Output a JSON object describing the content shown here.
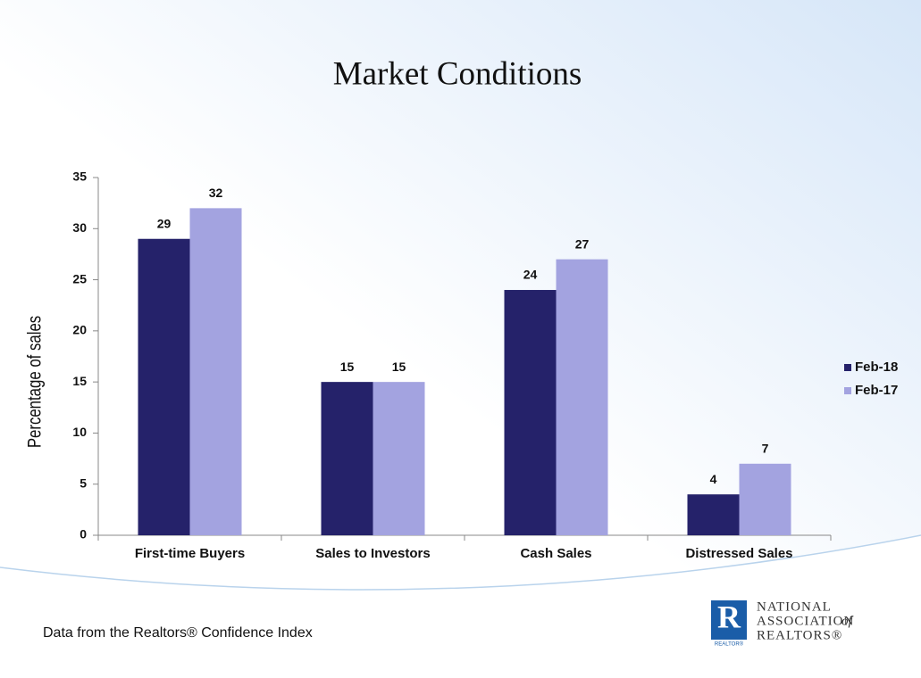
{
  "chart_data": {
    "type": "bar",
    "title": "Market Conditions",
    "y_label": "Percentage of  sales",
    "categories": [
      "First-time Buyers",
      "Sales to Investors",
      "Cash Sales",
      "Distressed Sales"
    ],
    "series": [
      {
        "name": "Feb-18",
        "color": "#25226a",
        "values": [
          29,
          15,
          24,
          4
        ]
      },
      {
        "name": "Feb-17",
        "color": "#a3a3e0",
        "values": [
          32,
          15,
          27,
          7
        ]
      }
    ],
    "ylim": [
      0,
      35
    ],
    "yticks": [
      0,
      5,
      10,
      15,
      20,
      25,
      30,
      35
    ],
    "grid": false,
    "legend": "right"
  },
  "footer": "Data from the Realtors® Confidence Index",
  "logo": {
    "mark": "R",
    "caption": "REALTOR®",
    "line1": "NATIONAL",
    "line2": "ASSOCIATION",
    "of": "of",
    "line3": "REALTORS®"
  }
}
